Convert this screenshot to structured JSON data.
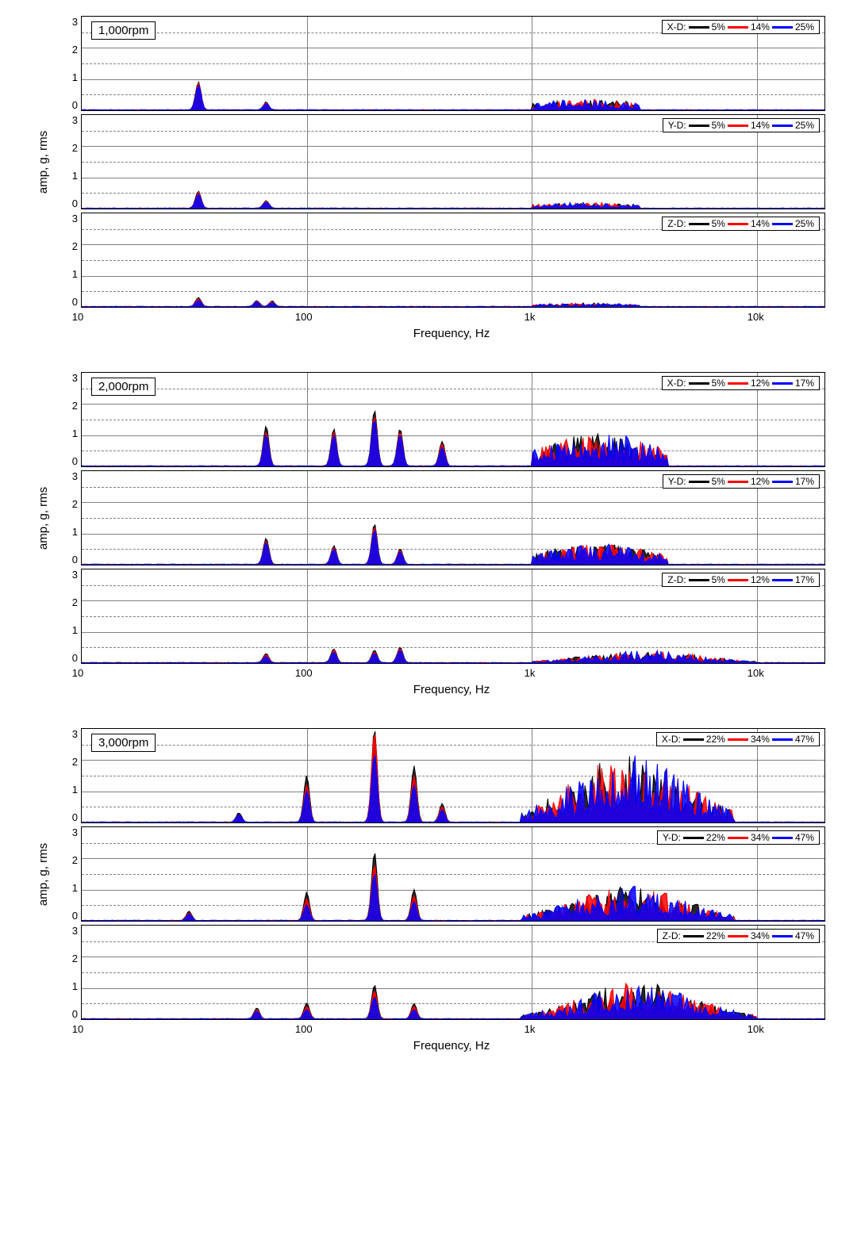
{
  "xaxis": {
    "label": "Frequency, Hz",
    "scale": "log",
    "min": 10,
    "max": 20000,
    "ticks": [
      10,
      100,
      1000,
      10000
    ],
    "tick_labels": [
      "10",
      "100",
      "1k",
      "10k"
    ],
    "label_fontsize": 15,
    "tick_fontsize": 13
  },
  "yaxis": {
    "label": "amp, g, rms",
    "min": 0,
    "max": 3,
    "ticks": [
      0,
      1,
      2,
      3
    ],
    "label_fontsize": 15,
    "tick_fontsize": 13
  },
  "colors": {
    "series1": "#000000",
    "series2": "#ff0000",
    "series3": "#0000ff",
    "grid": "#808080",
    "border": "#000000",
    "background": "#ffffff",
    "text": "#000000"
  },
  "line_width": 1,
  "groups": [
    {
      "rpm_label": "1,000rpm",
      "legend_percents": [
        "5%",
        "14%",
        "25%"
      ],
      "panels": [
        {
          "direction_label": "X-D:",
          "peaks": [
            {
              "f": 33,
              "a1": 0.9,
              "a2": 0.85,
              "a3": 0.8
            },
            {
              "f": 66,
              "a1": 0.25,
              "a2": 0.22,
              "a3": 0.2
            }
          ],
          "broadband": {
            "f_lo": 1000,
            "f_hi": 3000,
            "max": 0.35
          }
        },
        {
          "direction_label": "Y-D:",
          "peaks": [
            {
              "f": 33,
              "a1": 0.55,
              "a2": 0.5,
              "a3": 0.45
            },
            {
              "f": 66,
              "a1": 0.25,
              "a2": 0.22,
              "a3": 0.2
            }
          ],
          "broadband": {
            "f_lo": 1000,
            "f_hi": 3000,
            "max": 0.2
          }
        },
        {
          "direction_label": "Z-D:",
          "peaks": [
            {
              "f": 33,
              "a1": 0.3,
              "a2": 0.25,
              "a3": 0.2
            },
            {
              "f": 60,
              "a1": 0.2,
              "a2": 0.18,
              "a3": 0.15
            },
            {
              "f": 70,
              "a1": 0.18,
              "a2": 0.15,
              "a3": 0.12
            }
          ],
          "broadband": {
            "f_lo": 1000,
            "f_hi": 3000,
            "max": 0.12
          }
        }
      ]
    },
    {
      "rpm_label": "2,000rpm",
      "legend_percents": [
        "5%",
        "12%",
        "17%"
      ],
      "panels": [
        {
          "direction_label": "X-D:",
          "peaks": [
            {
              "f": 66,
              "a1": 1.3,
              "a2": 1.1,
              "a3": 1.0
            },
            {
              "f": 132,
              "a1": 1.2,
              "a2": 1.1,
              "a3": 1.0
            },
            {
              "f": 200,
              "a1": 1.8,
              "a2": 1.6,
              "a3": 1.5
            },
            {
              "f": 260,
              "a1": 1.2,
              "a2": 1.1,
              "a3": 1.0
            },
            {
              "f": 400,
              "a1": 0.8,
              "a2": 0.7,
              "a3": 0.6
            }
          ],
          "broadband": {
            "f_lo": 1000,
            "f_hi": 4000,
            "max": 1.1
          }
        },
        {
          "direction_label": "Y-D:",
          "peaks": [
            {
              "f": 66,
              "a1": 0.85,
              "a2": 0.75,
              "a3": 0.7
            },
            {
              "f": 132,
              "a1": 0.6,
              "a2": 0.55,
              "a3": 0.5
            },
            {
              "f": 200,
              "a1": 1.3,
              "a2": 1.2,
              "a3": 1.1
            },
            {
              "f": 260,
              "a1": 0.5,
              "a2": 0.45,
              "a3": 0.4
            }
          ],
          "broadband": {
            "f_lo": 1000,
            "f_hi": 4000,
            "max": 0.7
          }
        },
        {
          "direction_label": "Z-D:",
          "peaks": [
            {
              "f": 66,
              "a1": 0.3,
              "a2": 0.25,
              "a3": 0.2
            },
            {
              "f": 132,
              "a1": 0.45,
              "a2": 0.4,
              "a3": 0.35
            },
            {
              "f": 200,
              "a1": 0.4,
              "a2": 0.35,
              "a3": 0.3
            },
            {
              "f": 260,
              "a1": 0.5,
              "a2": 0.45,
              "a3": 0.4
            }
          ],
          "broadband": {
            "f_lo": 1000,
            "f_hi": 10000,
            "max": 0.4
          }
        }
      ]
    },
    {
      "rpm_label": "3,000rpm",
      "legend_percents": [
        "22%",
        "34%",
        "47%"
      ],
      "panels": [
        {
          "direction_label": "X-D:",
          "peaks": [
            {
              "f": 50,
              "a1": 0.3,
              "a2": 0.25,
              "a3": 0.25
            },
            {
              "f": 100,
              "a1": 1.5,
              "a2": 1.2,
              "a3": 1.0
            },
            {
              "f": 200,
              "a1": 3.0,
              "a2": 2.9,
              "a3": 2.2
            },
            {
              "f": 300,
              "a1": 1.8,
              "a2": 1.5,
              "a3": 1.2
            },
            {
              "f": 400,
              "a1": 0.6,
              "a2": 0.5,
              "a3": 0.4
            }
          ],
          "broadband": {
            "f_lo": 900,
            "f_hi": 8000,
            "max": 2.2
          }
        },
        {
          "direction_label": "Y-D:",
          "peaks": [
            {
              "f": 30,
              "a1": 0.3,
              "a2": 0.25,
              "a3": 0.2
            },
            {
              "f": 100,
              "a1": 0.9,
              "a2": 0.7,
              "a3": 0.5
            },
            {
              "f": 200,
              "a1": 2.2,
              "a2": 1.8,
              "a3": 1.5
            },
            {
              "f": 300,
              "a1": 1.0,
              "a2": 0.8,
              "a3": 0.6
            }
          ],
          "broadband": {
            "f_lo": 900,
            "f_hi": 8000,
            "max": 1.1
          }
        },
        {
          "direction_label": "Z-D:",
          "peaks": [
            {
              "f": 60,
              "a1": 0.35,
              "a2": 0.3,
              "a3": 0.25
            },
            {
              "f": 100,
              "a1": 0.5,
              "a2": 0.4,
              "a3": 0.3
            },
            {
              "f": 200,
              "a1": 1.1,
              "a2": 0.9,
              "a3": 0.7
            },
            {
              "f": 300,
              "a1": 0.5,
              "a2": 0.4,
              "a3": 0.3
            }
          ],
          "broadband": {
            "f_lo": 900,
            "f_hi": 10000,
            "max": 1.2
          }
        }
      ]
    }
  ]
}
